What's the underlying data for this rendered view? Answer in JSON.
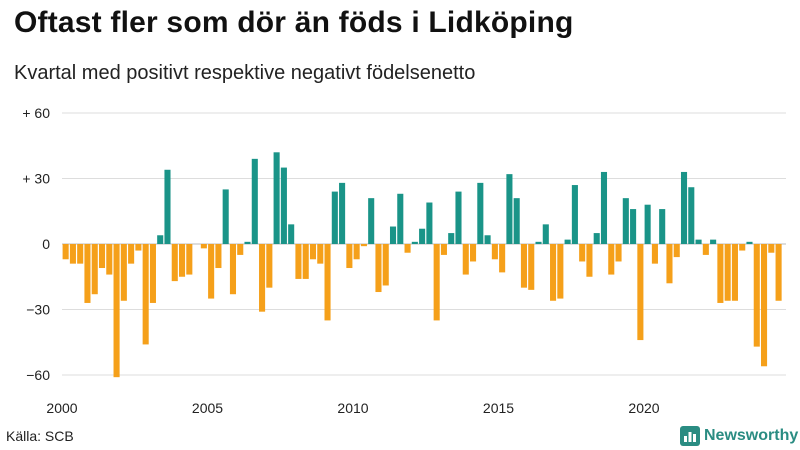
{
  "header": {
    "title": "Oftast fler som dör än föds i Lidköping",
    "subtitle": "Kvartal med positivt respektive negativt födelsenetto"
  },
  "footer": {
    "source": "Källa: SCB",
    "brand": "Newsworthy",
    "brand_icon": "bar-chart-logo-icon"
  },
  "colors": {
    "positive": "#1a9488",
    "negative": "#f5a01a",
    "grid": "#dddddd",
    "brand": "#2a8c82"
  },
  "chart_data": {
    "type": "bar",
    "title": "Oftast fler som dör än föds i Lidköping",
    "subtitle": "Kvartal med positivt respektive negativt födelsenetto",
    "xlabel": "",
    "ylabel": "",
    "ylim": [
      -70,
      60
    ],
    "y_ticks": [
      {
        "value": 60,
        "label": "+ 60"
      },
      {
        "value": 30,
        "label": "+ 30"
      },
      {
        "value": 0,
        "label": "0"
      },
      {
        "value": -30,
        "label": "−30"
      },
      {
        "value": -60,
        "label": "−60"
      }
    ],
    "x_ticks": [
      {
        "year": 2000,
        "label": "2000"
      },
      {
        "year": 2005,
        "label": "2005"
      },
      {
        "year": 2010,
        "label": "2010"
      },
      {
        "year": 2015,
        "label": "2015"
      },
      {
        "year": 2020,
        "label": "2020"
      }
    ],
    "start_year": 2000,
    "periods_per_year": 4,
    "values": [
      -7,
      -9,
      -9,
      -27,
      -23,
      -11,
      -14,
      -61,
      -26,
      -9,
      -3,
      -46,
      -27,
      4,
      34,
      -17,
      -15,
      -14,
      0,
      -2,
      -25,
      -11,
      25,
      -23,
      -5,
      1,
      39,
      -31,
      -20,
      42,
      35,
      9,
      -16,
      -16,
      -7,
      -9,
      -35,
      24,
      28,
      -11,
      -7,
      -1,
      21,
      -22,
      -19,
      8,
      23,
      -4,
      1,
      7,
      19,
      -35,
      -5,
      5,
      24,
      -14,
      -8,
      28,
      4,
      -7,
      -13,
      32,
      21,
      -20,
      -21,
      1,
      9,
      -26,
      -25,
      2,
      27,
      -8,
      -15,
      5,
      33,
      -14,
      -8,
      21,
      16,
      -44,
      18,
      -9,
      16,
      -18,
      -6,
      33,
      26,
      2,
      -5,
      2,
      -27,
      -26,
      -26,
      -3,
      1,
      -47,
      -56,
      -4,
      -26
    ]
  }
}
